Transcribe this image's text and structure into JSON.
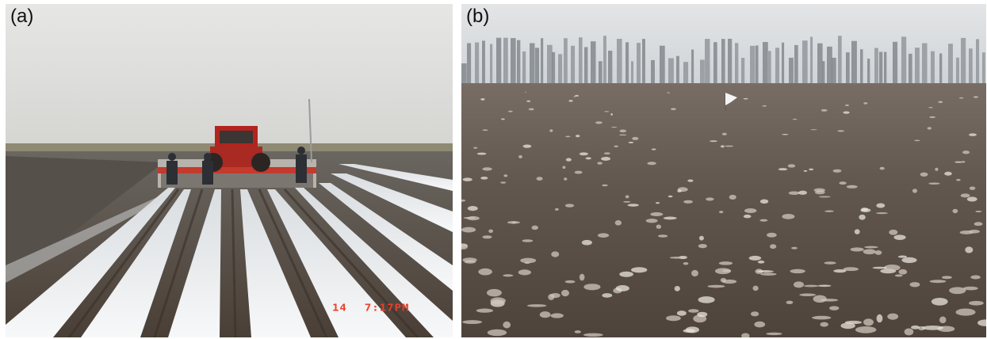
{
  "panels": [
    {
      "label": "(a)",
      "timestamp": {
        "day": "14",
        "time": "7:17PM"
      }
    },
    {
      "label": "(b)"
    }
  ],
  "colors": {
    "sky": "#dfe0df",
    "soil": "#5a524b",
    "plastic_mulch": "#eef0f2",
    "tractor": "#b3241f",
    "timestamp": "#e8412c",
    "field_b_soil": "#5e5249"
  },
  "icons": [
    "tractor-icon",
    "worker-icon",
    "tree-line"
  ]
}
